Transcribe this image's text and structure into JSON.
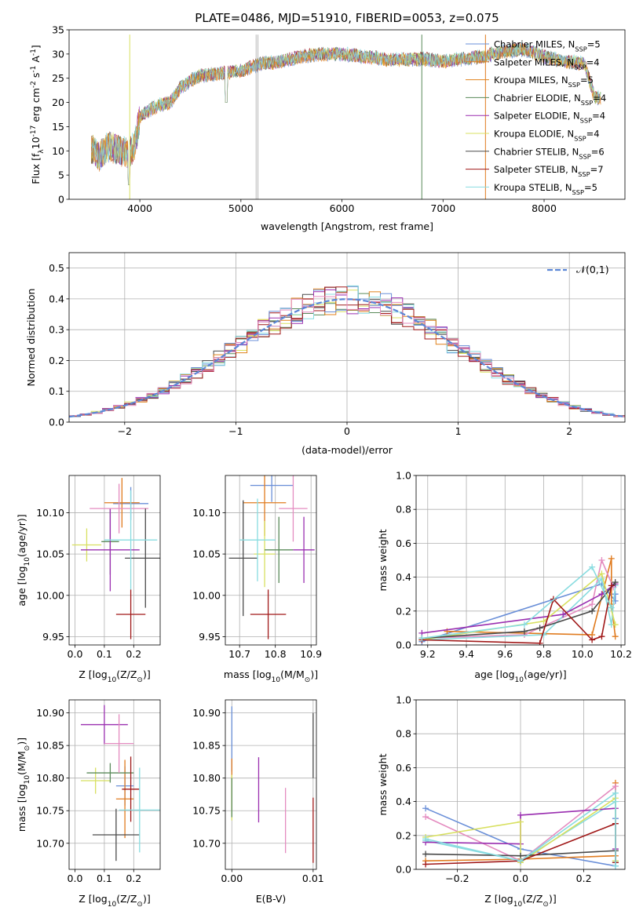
{
  "colors": [
    "#6a8fd8",
    "#e07b1f",
    "#e0821c",
    "#5a8a5a",
    "#9a2fb0",
    "#d8e060",
    "#4a4a4a",
    "#a01818",
    "#88dce0"
  ],
  "chart_data": [
    {
      "id": "spectrum",
      "type": "line",
      "title": "PLATE=0486, MJD=51910, FIBERID=0053, z=0.075",
      "xlabel": "wavelength [Angstrom, rest frame]",
      "ylabel": "Flux [f$_{\\lambda}$10$^{-17}$ erg cm$^{-2}$ s$^{-1}$ A$^{-1}$]",
      "xlim": [
        3300,
        8800
      ],
      "ylim": [
        0,
        35
      ],
      "xticks": [
        4000,
        5000,
        6000,
        7000,
        8000
      ],
      "yticks": [
        0,
        5,
        10,
        15,
        20,
        25,
        30,
        35
      ],
      "grid": false,
      "legend_position": "top-right",
      "series": [
        {
          "name": "Chabrier MILES, N$_{SSP}$=5"
        },
        {
          "name": "Salpeter MILES, N$_{SSP}$=4"
        },
        {
          "name": "Kroupa MILES, N$_{SSP}$=5"
        },
        {
          "name": "Chabrier ELODIE, N$_{SSP}$=4"
        },
        {
          "name": "Salpeter ELODIE, N$_{SSP}$=4"
        },
        {
          "name": "Kroupa ELODIE, N$_{SSP}$=4"
        },
        {
          "name": "Chabrier STELIB, N$_{SSP}$=6"
        },
        {
          "name": "Salpeter STELIB, N$_{SSP}$=7"
        },
        {
          "name": "Kroupa STELIB, N$_{SSP}$=5"
        }
      ],
      "spectrum_anchor_points": {
        "x": [
          3520,
          3600,
          3700,
          3800,
          3900,
          3950,
          4000,
          4100,
          4200,
          4300,
          4400,
          4500,
          4600,
          4800,
          5000,
          5200,
          5400,
          5600,
          5800,
          6000,
          6200,
          6400,
          6600,
          6800,
          7000,
          7200,
          7400,
          7600,
          7800,
          8000,
          8200,
          8400,
          8500
        ],
        "y": [
          10.5,
          9.0,
          11.0,
          10.0,
          9.5,
          11.0,
          17.0,
          18.5,
          19.5,
          20.0,
          23.0,
          24.5,
          25.5,
          26.0,
          26.5,
          28.0,
          28.5,
          29.5,
          30.0,
          30.0,
          29.5,
          29.0,
          28.8,
          29.0,
          28.5,
          29.0,
          29.5,
          30.5,
          31.0,
          29.5,
          28.5,
          28.0,
          21.0
        ]
      }
    },
    {
      "id": "residuals",
      "type": "histogram",
      "xlabel": "(data-model)/error",
      "ylabel": "Normed distribution",
      "xlim": [
        -2.5,
        2.5
      ],
      "ylim": [
        0,
        0.55
      ],
      "xticks": [
        -2,
        -1,
        0,
        1,
        2
      ],
      "yticks": [
        0.0,
        0.1,
        0.2,
        0.3,
        0.4,
        0.5
      ],
      "grid": true,
      "legend_position": "top-right",
      "reference_curve": {
        "name": "$\\mathcal{N}(0,1)$",
        "mean": 0,
        "sigma": 1
      },
      "bin_width": 0.1,
      "bin_range": [
        -2.5,
        2.5
      ]
    },
    {
      "id": "age_vs_Z",
      "type": "errorbar",
      "xlabel": "Z [log$_{10}$(Z/Z$_\\odot$)]",
      "ylabel": "age  [log$_{10}$(age/yr)]",
      "xlim": [
        -0.02,
        0.29
      ],
      "ylim": [
        9.94,
        10.145
      ],
      "xticks": [
        0.0,
        0.1,
        0.2
      ],
      "yticks": [
        9.95,
        10.0,
        10.05,
        10.1
      ],
      "ytick_labels": [
        "9.95",
        "10.00",
        "10.05",
        "10.10"
      ],
      "grid": true,
      "points": [
        {
          "x": 0.19,
          "y": 10.111,
          "xerr": 0.06,
          "yerr": 0.02
        },
        {
          "x": 0.16,
          "y": 10.112,
          "xerr": 0.06,
          "yerr": 0.03
        },
        {
          "x": 0.04,
          "y": 10.061,
          "xerr": 0.05,
          "yerr": 0.02
        },
        {
          "x": 0.12,
          "y": 10.065,
          "xerr": 0.03,
          "yerr": 0.04
        },
        {
          "x": 0.12,
          "y": 10.055,
          "xerr": 0.1,
          "yerr": 0.05
        },
        {
          "x": 0.15,
          "y": 10.105,
          "xerr": 0.1,
          "yerr": 0.03
        },
        {
          "x": 0.24,
          "y": 10.045,
          "xerr": 0.07,
          "yerr": 0.06
        },
        {
          "x": 0.19,
          "y": 9.977,
          "xerr": 0.05,
          "yerr": 0.03
        },
        {
          "x": 0.19,
          "y": 10.067,
          "xerr": 0.09,
          "yerr": 0.06
        }
      ]
    },
    {
      "id": "age_vs_mass",
      "type": "errorbar",
      "xlabel": "mass [log$_{10}$(M/M$_\\odot$)]",
      "ylabel": "",
      "xlim": [
        10.66,
        10.915
      ],
      "ylim": [
        9.94,
        10.145
      ],
      "xticks": [
        10.7,
        10.8,
        10.9
      ],
      "yticks": [
        9.95,
        10.0,
        10.05,
        10.1
      ],
      "ytick_labels": [
        "9.95",
        "10.00",
        "10.05",
        "10.10"
      ],
      "grid": true,
      "points": [
        {
          "x": 10.79,
          "y": 10.133,
          "xerr": 0.06,
          "yerr": 0.02
        },
        {
          "x": 10.77,
          "y": 10.112,
          "xerr": 0.06,
          "yerr": 0.04
        },
        {
          "x": 10.77,
          "y": 10.05,
          "xerr": 0.03,
          "yerr": 0.04
        },
        {
          "x": 10.81,
          "y": 10.055,
          "xerr": 0.04,
          "yerr": 0.04
        },
        {
          "x": 10.88,
          "y": 10.055,
          "xerr": 0.03,
          "yerr": 0.04
        },
        {
          "x": 10.85,
          "y": 10.105,
          "xerr": 0.04,
          "yerr": 0.04
        },
        {
          "x": 10.71,
          "y": 10.045,
          "xerr": 0.04,
          "yerr": 0.07
        },
        {
          "x": 10.78,
          "y": 9.977,
          "xerr": 0.05,
          "yerr": 0.03
        },
        {
          "x": 10.75,
          "y": 10.067,
          "xerr": 0.05,
          "yerr": 0.05
        }
      ]
    },
    {
      "id": "weight_vs_age",
      "type": "line",
      "xlabel": "age  [log$_{10}$(age/yr)]",
      "ylabel": "mass weight",
      "xlim": [
        9.14,
        10.22
      ],
      "ylim": [
        0,
        1.0
      ],
      "xticks": [
        9.2,
        9.4,
        9.6,
        9.8,
        10.0,
        10.2
      ],
      "yticks": [
        0.0,
        0.2,
        0.4,
        0.6,
        0.8,
        1.0
      ],
      "grid": true,
      "series": [
        {
          "x": [
            9.17,
            10.1,
            10.17,
            10.17
          ],
          "y": [
            0.02,
            0.36,
            0.26,
            0.3
          ]
        },
        {
          "x": [
            9.3,
            10.05,
            10.15,
            10.15,
            10.17
          ],
          "y": [
            0.08,
            0.06,
            0.51,
            0.24,
            0.05
          ]
        },
        {
          "x": [
            9.17,
            9.7,
            10.05,
            10.1,
            10.16
          ],
          "y": [
            0.04,
            0.06,
            0.24,
            0.5,
            0.34
          ]
        },
        {
          "x": [
            9.17,
            9.8,
            10.1,
            10.15,
            10.17
          ],
          "y": [
            0.03,
            0.06,
            0.39,
            0.12,
            0.35
          ]
        },
        {
          "x": [
            9.17,
            9.9,
            10.1,
            10.17
          ],
          "y": [
            0.07,
            0.18,
            0.3,
            0.36
          ]
        },
        {
          "x": [
            9.17,
            9.8,
            10.1,
            10.17
          ],
          "y": [
            0.03,
            0.14,
            0.42,
            0.12
          ]
        },
        {
          "x": [
            9.17,
            9.7,
            9.78,
            10.05,
            10.17
          ],
          "y": [
            0.04,
            0.08,
            0.1,
            0.2,
            0.37
          ]
        },
        {
          "x": [
            9.17,
            9.78,
            9.85,
            10.05,
            10.1,
            10.15
          ],
          "y": [
            0.03,
            0.01,
            0.27,
            0.03,
            0.05,
            0.35
          ]
        },
        {
          "x": [
            9.17,
            9.7,
            10.05,
            10.15
          ],
          "y": [
            0.04,
            0.12,
            0.46,
            0.22
          ]
        }
      ]
    },
    {
      "id": "mass_vs_Z",
      "type": "errorbar",
      "xlabel": "Z [log$_{10}$(Z/Z$_\\odot$)]",
      "ylabel": "mass [log$_{10}$(M/M$_\\odot$)]",
      "xlim": [
        -0.02,
        0.29
      ],
      "ylim": [
        10.66,
        10.92
      ],
      "xticks": [
        0.0,
        0.1,
        0.2
      ],
      "yticks": [
        10.7,
        10.75,
        10.8,
        10.85,
        10.9
      ],
      "ytick_labels": [
        "10.70",
        "10.75",
        "10.80",
        "10.85",
        "10.90"
      ],
      "grid": true,
      "points": [
        {
          "x": 0.17,
          "y": 10.788,
          "xerr": 0.03,
          "yerr": 0.03
        },
        {
          "x": 0.17,
          "y": 10.768,
          "xerr": 0.03,
          "yerr": 0.06
        },
        {
          "x": 0.07,
          "y": 10.796,
          "xerr": 0.05,
          "yerr": 0.02
        },
        {
          "x": 0.12,
          "y": 10.808,
          "xerr": 0.08,
          "yerr": 0.015
        },
        {
          "x": 0.1,
          "y": 10.882,
          "xerr": 0.08,
          "yerr": 0.03
        },
        {
          "x": 0.15,
          "y": 10.853,
          "xerr": 0.05,
          "yerr": 0.045
        },
        {
          "x": 0.14,
          "y": 10.713,
          "xerr": 0.08,
          "yerr": 0.04
        },
        {
          "x": 0.19,
          "y": 10.783,
          "xerr": 0.03,
          "yerr": 0.05
        },
        {
          "x": 0.22,
          "y": 10.751,
          "xerr": 0.07,
          "yerr": 0.065
        }
      ]
    },
    {
      "id": "mass_vs_ebv",
      "type": "errorbar",
      "xlabel": "E(B-V)",
      "ylabel": "",
      "xlim": [
        -0.0008,
        0.0104
      ],
      "ylim": [
        10.66,
        10.92
      ],
      "xticks": [
        0.0,
        0.01
      ],
      "xtick_labels": [
        "0.00",
        "0.01"
      ],
      "yticks": [
        10.7,
        10.75,
        10.8,
        10.85,
        10.9
      ],
      "ytick_labels": [
        "10.70",
        "10.75",
        "10.80",
        "10.85",
        "10.90"
      ],
      "grid": true,
      "points": [
        {
          "x": 0.0,
          "y": 10.86,
          "xerr": 0,
          "yerr": 0.05
        },
        {
          "x": 0.0,
          "y": 10.79,
          "xerr": 0,
          "yerr": 0.04
        },
        {
          "x": 0.0,
          "y": 10.77,
          "xerr": 0,
          "yerr": 0.035
        },
        {
          "x": 0.0,
          "y": 10.77,
          "xerr": 0,
          "yerr": 0.03
        },
        {
          "x": 0.0033,
          "y": 10.782,
          "xerr": 0,
          "yerr": 0.05
        },
        {
          "x": 0.0066,
          "y": 10.735,
          "xerr": 0,
          "yerr": 0.05
        },
        {
          "x": 0.01,
          "y": 10.85,
          "xerr": 0,
          "yerr": 0.05
        },
        {
          "x": 0.01,
          "y": 10.72,
          "xerr": 0,
          "yerr": 0.05
        }
      ]
    },
    {
      "id": "weight_vs_Z",
      "type": "line",
      "xlabel": "Z [log$_{10}$(Z/Z$_\\odot$)]",
      "ylabel": "mass weight",
      "xlim": [
        -0.33,
        0.33
      ],
      "ylim": [
        0,
        1.0
      ],
      "xticks": [
        -0.2,
        0.0,
        0.2
      ],
      "yticks": [
        0.0,
        0.2,
        0.4,
        0.6,
        0.8,
        1.0
      ],
      "grid": true,
      "series": [
        {
          "x": [
            -0.3,
            0.0,
            0.3,
            0.3
          ],
          "y": [
            0.36,
            0.12,
            0.02,
            0.3
          ]
        },
        {
          "x": [
            -0.3,
            0.0,
            0.3,
            0.3,
            0.3
          ],
          "y": [
            0.05,
            0.06,
            0.08,
            0.51,
            0.05
          ]
        },
        {
          "x": [
            -0.3,
            0.0,
            0.3,
            0.3
          ],
          "y": [
            0.31,
            0.05,
            0.49,
            0.05
          ]
        },
        {
          "x": [
            -0.3,
            0.0,
            0.3,
            0.3
          ],
          "y": [
            0.17,
            0.05,
            0.4,
            0.05
          ]
        },
        {
          "x": [
            -0.3,
            0.0,
            0.0,
            0.3,
            0.3
          ],
          "y": [
            0.16,
            0.15,
            0.32,
            0.36,
            0.12
          ]
        },
        {
          "x": [
            -0.3,
            0.0,
            0.0,
            0.3,
            0.3
          ],
          "y": [
            0.19,
            0.28,
            0.04,
            0.42,
            0.05
          ]
        },
        {
          "x": [
            -0.3,
            0.0,
            0.3,
            0.3
          ],
          "y": [
            0.09,
            0.08,
            0.11,
            0.04
          ]
        },
        {
          "x": [
            -0.3,
            0.0,
            0.3,
            0.3
          ],
          "y": [
            0.03,
            0.05,
            0.27,
            0.04
          ]
        },
        {
          "x": [
            -0.3,
            0.0,
            0.3,
            0.3
          ],
          "y": [
            0.18,
            0.05,
            0.45,
            0.02
          ]
        }
      ]
    }
  ]
}
